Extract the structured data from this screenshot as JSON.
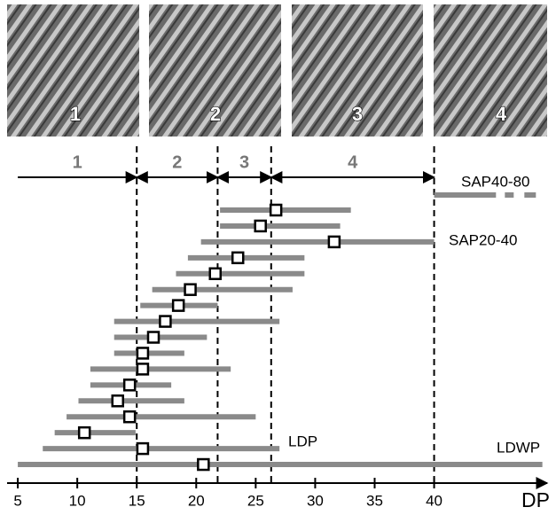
{
  "chart_data": {
    "type": "range",
    "images": [
      {
        "label": "1"
      },
      {
        "label": "2"
      },
      {
        "label": "3"
      },
      {
        "label": "4"
      }
    ],
    "regions": [
      {
        "label": "1",
        "start": 5,
        "end": 15
      },
      {
        "label": "2",
        "start": 15,
        "end": 21.8
      },
      {
        "label": "3",
        "start": 21.8,
        "end": 26.3
      },
      {
        "label": "4",
        "start": 26.3,
        "end": 40
      }
    ],
    "dividers": [
      15,
      21.8,
      26.3,
      40
    ],
    "low": [
      22.0,
      22.0,
      20.4,
      19.3,
      18.3,
      16.3,
      15.3,
      13.1,
      13.1,
      13.1,
      11.1,
      11.1,
      10.1,
      9.1,
      8.1,
      7.1,
      5
    ],
    "high": [
      33.0,
      32.1,
      40,
      29.1,
      29.1,
      28.1,
      21.8,
      27.0,
      20.9,
      19.0,
      22.9,
      17.9,
      19.0,
      25.0,
      14.9,
      27.0,
      49.1
    ],
    "median": [
      26.7,
      25.4,
      31.6,
      23.5,
      21.6,
      19.5,
      18.5,
      17.4,
      16.4,
      15.5,
      15.5,
      14.4,
      13.4,
      14.4,
      10.6,
      15.5,
      20.6
    ],
    "open_range": {
      "low": 40,
      "high": 45.2
    },
    "color": "#8a8a8a",
    "annotations": [
      "SAP40-80",
      "SAP20-40",
      "LDP",
      "LDWP"
    ],
    "xlabel": "DP",
    "xlim": [
      4.1,
      49.5
    ],
    "xticks": [
      5,
      10,
      15,
      20,
      25,
      30,
      35,
      40
    ]
  }
}
